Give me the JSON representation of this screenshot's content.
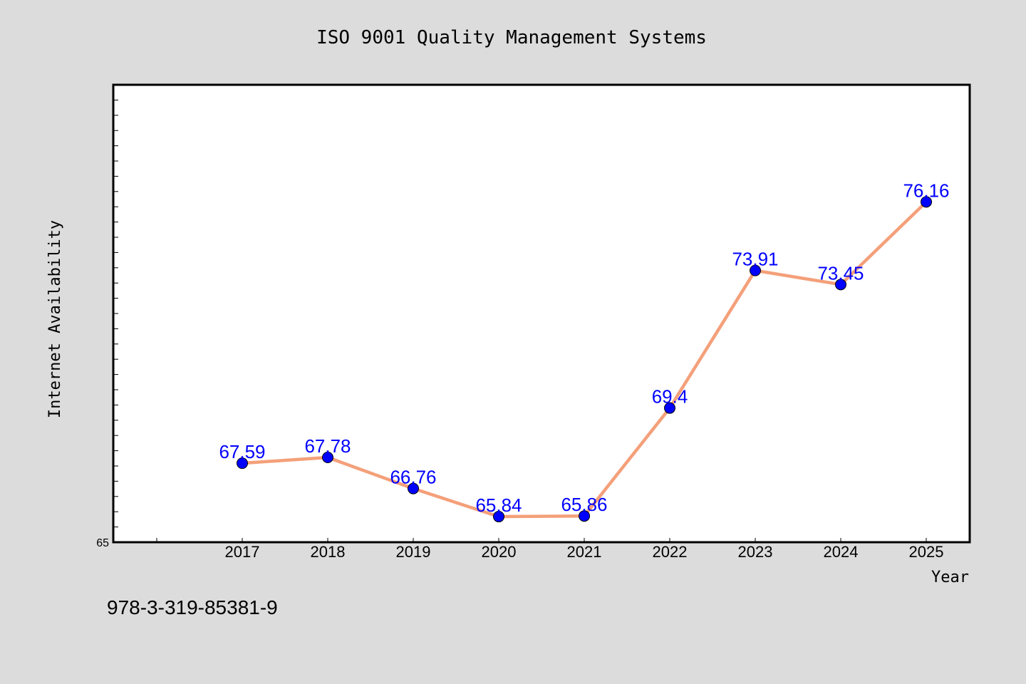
{
  "chart_data": {
    "type": "line",
    "title": "ISO 9001 Quality Management Systems",
    "xlabel": "Year",
    "ylabel": "Internet Availability",
    "categories": [
      "2017",
      "2018",
      "2019",
      "2020",
      "2021",
      "2022",
      "2023",
      "2024",
      "2025"
    ],
    "series": [
      {
        "values": [
          67.59,
          67.78,
          66.76,
          65.84,
          65.86,
          69.4,
          73.91,
          73.45,
          76.16
        ],
        "labels": [
          "67.59",
          "67.78",
          "66.76",
          "65.84",
          "65.86",
          "69.4",
          "73.91",
          "73.45",
          "76.16"
        ]
      }
    ],
    "y_tick_labels": [
      "65"
    ],
    "ylim": [
      65,
      80
    ],
    "grid": false,
    "legend": "none",
    "colors": {
      "line": "#f4a07a",
      "marker": "#0000ff",
      "marker_edge": "#000000",
      "data_label": "#0000ff",
      "background": "#dcdcdc",
      "plot_background": "#ffffff"
    }
  },
  "footer": {
    "isbn": "978-3-319-85381-9"
  }
}
